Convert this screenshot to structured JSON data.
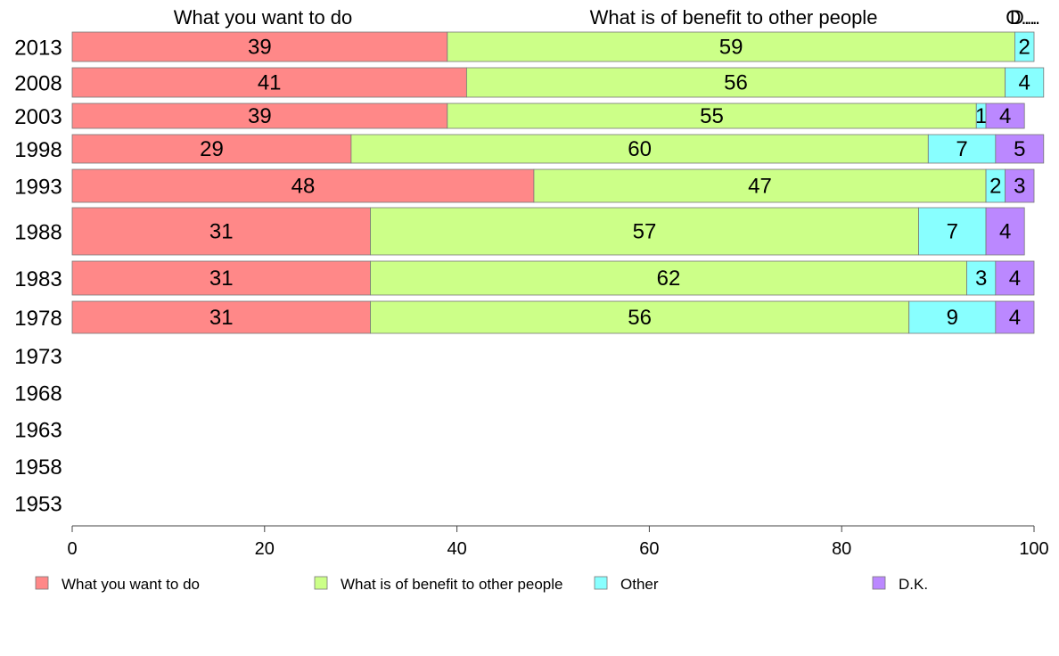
{
  "chart_data": {
    "type": "bar",
    "orientation": "horizontal",
    "stacked": true,
    "column_headers": [
      "What you want to do",
      "What is of benefit to other people",
      "O...",
      "D..."
    ],
    "categories": [
      "2013",
      "2008",
      "2003",
      "1998",
      "1993",
      "1988",
      "1983",
      "1978",
      "1973",
      "1968",
      "1963",
      "1958",
      "1953"
    ],
    "series": [
      {
        "name": "What you want to do",
        "color": "#ff8888",
        "values": [
          39,
          41,
          39,
          29,
          48,
          31,
          31,
          31,
          null,
          null,
          null,
          null,
          null
        ]
      },
      {
        "name": "What is of benefit to other people",
        "color": "#ccff88",
        "values": [
          59,
          56,
          55,
          60,
          47,
          57,
          62,
          56,
          null,
          null,
          null,
          null,
          null
        ]
      },
      {
        "name": "Other",
        "color": "#88ffff",
        "values": [
          2,
          4,
          1,
          7,
          2,
          7,
          3,
          9,
          null,
          null,
          null,
          null,
          null
        ]
      },
      {
        "name": "D.K.",
        "color": "#bb88ff",
        "values": [
          0,
          0,
          4,
          5,
          3,
          4,
          4,
          4,
          null,
          null,
          null,
          null,
          null
        ]
      }
    ],
    "xlim": [
      0,
      100
    ],
    "xticks": [
      0,
      20,
      40,
      60,
      80,
      100
    ],
    "grid": false,
    "legend_position": "bottom"
  }
}
